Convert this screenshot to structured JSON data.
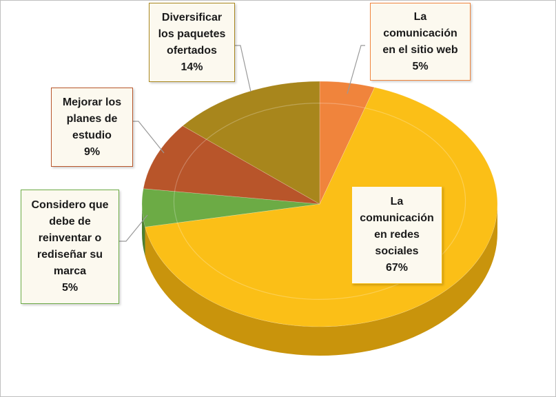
{
  "chart_data": {
    "type": "pie",
    "title": "",
    "slices": [
      {
        "label": "La comunicación en el sitio web",
        "lines": [
          "La",
          "comunicación",
          "en el sitio web"
        ],
        "value": 5,
        "value_label": "5%",
        "color": "#f0843c",
        "side_color": "#b35e22"
      },
      {
        "label": "La comunicación en redes sociales",
        "lines": [
          "La",
          "comunicación",
          "en redes",
          "sociales"
        ],
        "value": 67,
        "value_label": "67%",
        "color": "#fbbf17",
        "side_color": "#c9940c"
      },
      {
        "label": "Considero que debe de reinventar o rediseñar su marca",
        "lines": [
          "Considero que",
          "debe de",
          "reinventar o",
          "rediseñar su",
          "marca"
        ],
        "value": 5,
        "value_label": "5%",
        "color": "#6cab45",
        "side_color": "#4d7f2f"
      },
      {
        "label": "Mejorar los planes de estudio",
        "lines": [
          "Mejorar los",
          "planes de",
          "estudio"
        ],
        "value": 9,
        "value_label": "9%",
        "color": "#b8552a",
        "side_color": "#83391a"
      },
      {
        "label": "Diversificar los paquetes ofertados",
        "lines": [
          "Diversificar",
          "los paquetes",
          "ofertados"
        ],
        "value": 14,
        "value_label": "14%",
        "color": "#a8861c",
        "side_color": "#7a6113"
      }
    ]
  }
}
